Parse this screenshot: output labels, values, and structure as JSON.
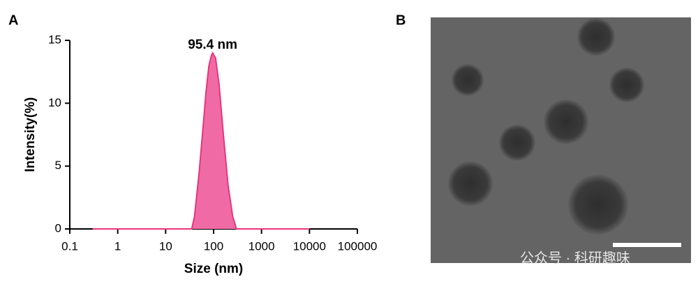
{
  "panels": [
    "A",
    "B"
  ],
  "watermark": "公众号 · 科研趣味",
  "chart_data": {
    "type": "area",
    "xscale": "log",
    "x_label": "Size (nm)",
    "y_label": "Intensity(%)",
    "annotation": "95.4 nm",
    "x": [
      0.3,
      35,
      40,
      50,
      60,
      70,
      80,
      90,
      95.4,
      110,
      130,
      160,
      200,
      250,
      300,
      10000
    ],
    "series": [
      {
        "color": "#e8347a",
        "values": [
          0,
          0,
          1,
          4.5,
          8,
          11,
          13,
          13.8,
          14,
          13.6,
          11.5,
          7.5,
          3.5,
          1,
          0,
          0
        ]
      }
    ],
    "xlim": [
      0.1,
      100000
    ],
    "xticks": [
      0.1,
      1,
      10,
      100,
      1000,
      10000,
      100000
    ],
    "ylim": [
      0,
      15
    ],
    "yticks": [
      0,
      5,
      10,
      15
    ]
  }
}
